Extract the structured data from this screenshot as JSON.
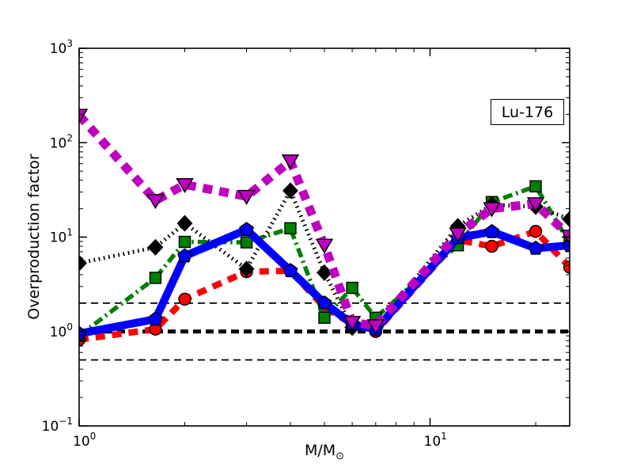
{
  "figure": {
    "background": "#ffffff"
  },
  "chart_data": {
    "type": "line",
    "title": "Lu-176",
    "ylabel": "Overproduction factor",
    "xlabel": {
      "main": "M/M",
      "sub": "⊙"
    },
    "xscale": "log",
    "yscale": "log",
    "xlim": [
      1,
      25
    ],
    "ylim": [
      0.1,
      1000
    ],
    "x_tick_exponents": [
      0,
      1
    ],
    "y_tick_exponents": [
      -1,
      0,
      1,
      2,
      3
    ],
    "grid": false,
    "legend_position": "upper-right-box",
    "x": [
      1.0,
      1.65,
      2.0,
      3.0,
      4.0,
      5.0,
      6.0,
      7.0,
      12.0,
      15.0,
      20.0,
      25.0
    ],
    "series": [
      {
        "name": "red-dashed-circles",
        "color": "#ff0000",
        "linestyle": "dashed",
        "linewidth": 8,
        "marker": "circle",
        "values": [
          0.82,
          1.06,
          2.2,
          4.3,
          4.4,
          1.8,
          1.2,
          1.0,
          9.3,
          8.0,
          11.5,
          4.8
        ]
      },
      {
        "name": "green-dashdot-squares",
        "color": "#008000",
        "linestyle": "dashdot",
        "linewidth": 5.5,
        "marker": "square",
        "values": [
          0.9,
          3.7,
          8.9,
          8.8,
          12.4,
          1.4,
          2.9,
          1.4,
          8.2,
          23.5,
          34.5,
          8.6
        ]
      },
      {
        "name": "black-dotted-diamonds",
        "color": "#000000",
        "linestyle": "dotted",
        "linewidth": 5,
        "marker": "diamond",
        "values": [
          5.3,
          7.8,
          14.0,
          4.6,
          31.0,
          4.2,
          1.1,
          1.1,
          13.0,
          22.0,
          21.0,
          15.5
        ]
      },
      {
        "name": "blue-solid-pentagons",
        "color": "#0000ff",
        "linestyle": "solid",
        "linewidth": 10,
        "marker": "pentagon",
        "values": [
          0.95,
          1.35,
          6.3,
          12.0,
          4.4,
          2.0,
          1.2,
          1.05,
          9.8,
          11.4,
          7.6,
          8.2
        ]
      },
      {
        "name": "magenta-dashed-triangles",
        "color": "#bf00bf",
        "linestyle": "dashed",
        "linewidth": 11,
        "marker": "triangle-down",
        "values": [
          195,
          24.4,
          36,
          27,
          64,
          8.2,
          1.25,
          1.15,
          10.8,
          20,
          22.6,
          10.2
        ]
      }
    ],
    "hlines": [
      {
        "y": 2.0,
        "style": "thin-dashed",
        "color": "#000000"
      },
      {
        "y": 1.0,
        "style": "thick-dashed",
        "color": "#000000"
      },
      {
        "y": 0.5,
        "style": "thin-dashed",
        "color": "#000000"
      }
    ]
  }
}
